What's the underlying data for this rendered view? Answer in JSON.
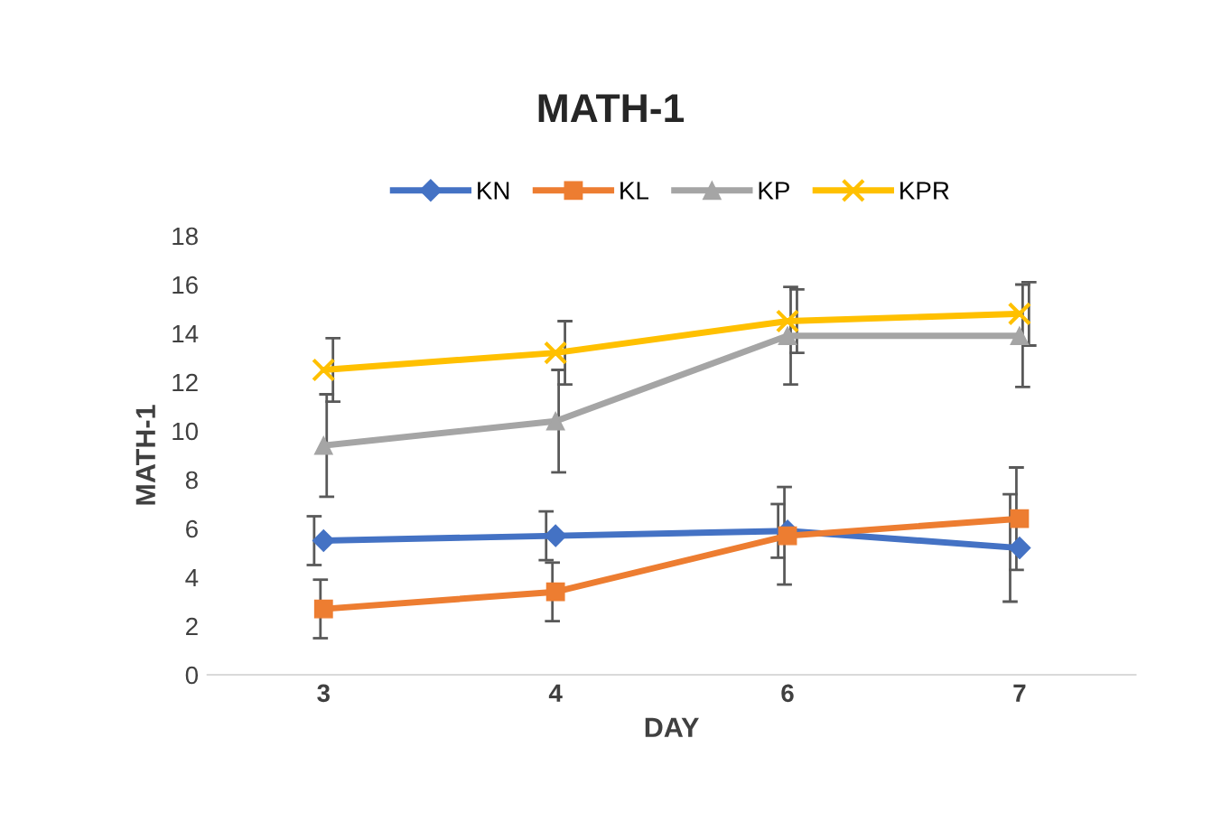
{
  "chart_data": {
    "type": "line",
    "title": "MATH-1",
    "xlabel": "DAY",
    "ylabel": "MATH-1",
    "categories": [
      "3",
      "4",
      "6",
      "7"
    ],
    "series": [
      {
        "name": "KN",
        "color": "#4472c4",
        "marker": "diamond",
        "values": [
          5.5,
          5.7,
          5.9,
          5.2
        ],
        "errors": [
          1.0,
          1.0,
          1.1,
          2.2
        ]
      },
      {
        "name": "KL",
        "color": "#ed7d31",
        "marker": "square",
        "values": [
          2.7,
          3.4,
          5.7,
          6.4
        ],
        "errors": [
          1.2,
          1.2,
          2.0,
          2.1
        ]
      },
      {
        "name": "KP",
        "color": "#a5a5a5",
        "marker": "triangle",
        "values": [
          9.4,
          10.4,
          13.9,
          13.9
        ],
        "errors": [
          2.1,
          2.1,
          2.0,
          2.1
        ]
      },
      {
        "name": "KPR",
        "color": "#ffc000",
        "marker": "cross",
        "values": [
          12.5,
          13.2,
          14.5,
          14.8
        ],
        "errors": [
          1.3,
          1.3,
          1.3,
          1.3
        ]
      }
    ],
    "ylim": [
      0,
      18
    ],
    "yticks": [
      0,
      2,
      4,
      6,
      8,
      10,
      12,
      14,
      16,
      18
    ],
    "grid": false,
    "legend": "top"
  }
}
